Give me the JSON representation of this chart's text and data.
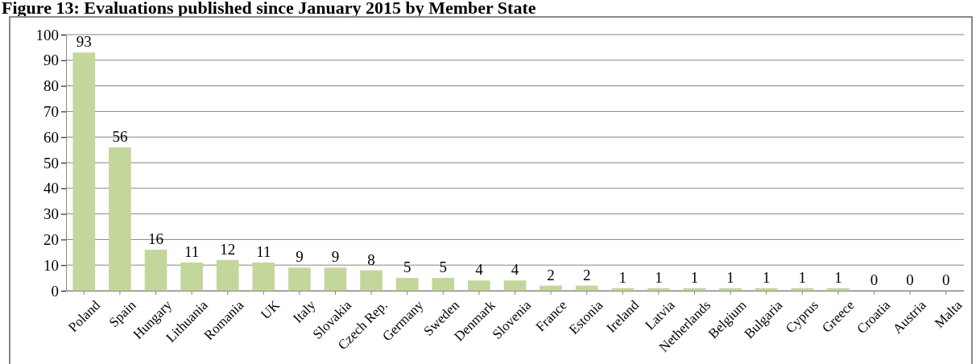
{
  "chart_data": {
    "type": "bar",
    "title": "Figure 13: Evaluations published since January 2015 by Member State",
    "categories": [
      "Poland",
      "Spain",
      "Hungary",
      "Lithuania",
      "Romania",
      "UK",
      "Italy",
      "Slovakia",
      "Czech Rep.",
      "Germany",
      "Sweden",
      "Denmark",
      "Slovenia",
      "France",
      "Estonia",
      "Ireland",
      "Latvia",
      "Netherlands",
      "Belgium",
      "Bulgaria",
      "Cyprus",
      "Greece",
      "Croatia",
      "Austria",
      "Malta"
    ],
    "values": [
      93,
      56,
      16,
      11,
      12,
      11,
      9,
      9,
      8,
      5,
      5,
      4,
      4,
      2,
      2,
      1,
      1,
      1,
      1,
      1,
      1,
      1,
      0,
      0,
      0
    ],
    "color": "#c3d69b",
    "ylim": [
      0,
      100
    ],
    "yticks": [
      0,
      10,
      20,
      30,
      40,
      50,
      60,
      70,
      80,
      90,
      100
    ],
    "grid": "y",
    "data_labels": true
  }
}
